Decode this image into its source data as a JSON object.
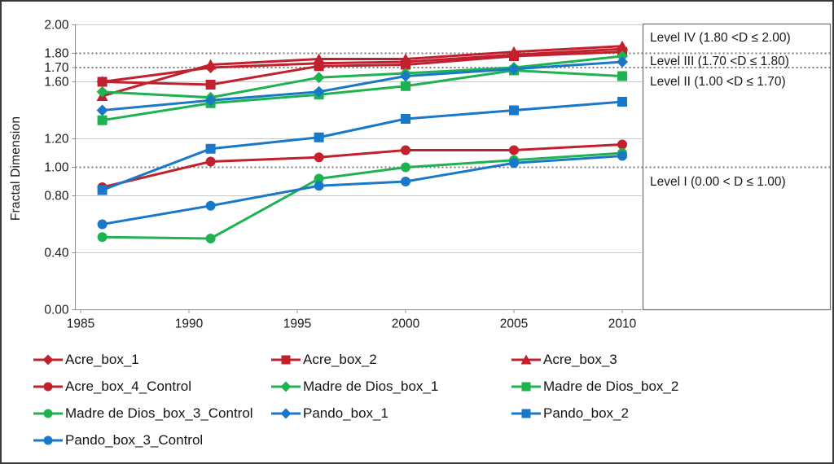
{
  "figure": {
    "colors": {
      "acre_red": "#C3202E",
      "madre_green": "#1EB250",
      "pando_blue": "#1978C8",
      "gridline": "#C8C8C8",
      "reference_dotted": "#7A7A7A",
      "axis": "#8C8C8C",
      "panel_border": "#6E6E6E",
      "text": "#1A1A1A"
    }
  },
  "chart_data": {
    "type": "line",
    "title": "",
    "xlabel": "",
    "ylabel": "Fractal Dimension",
    "x": [
      1986,
      1991,
      1996,
      2000,
      2005,
      2010
    ],
    "x_tick_labels": [
      "1985",
      "1990",
      "1995",
      "2000",
      "2005",
      "2010"
    ],
    "y_tick_labels": [
      "2.00",
      "1.80",
      "1.70",
      "1.60",
      "1.20",
      "1.00",
      "0.80",
      "0.40",
      "0.00"
    ],
    "ylim": [
      0.0,
      2.0
    ],
    "xlim": [
      1985,
      2011
    ],
    "grid_values": [
      2.0,
      1.6,
      1.2,
      0.8,
      0.4
    ],
    "reference_lines": [
      1.8,
      1.7,
      1.0
    ],
    "legend_position": "bottom",
    "series": [
      {
        "name": "Acre_box_1",
        "color": "#C3202E",
        "marker": "diamond",
        "values": [
          1.6,
          1.7,
          1.73,
          1.74,
          1.79,
          1.83
        ]
      },
      {
        "name": "Acre_box_2",
        "color": "#C3202E",
        "marker": "square",
        "values": [
          1.6,
          1.58,
          1.71,
          1.72,
          1.78,
          1.81
        ]
      },
      {
        "name": "Acre_box_3",
        "color": "#C3202E",
        "marker": "triangle",
        "values": [
          1.5,
          1.72,
          1.76,
          1.76,
          1.81,
          1.85
        ]
      },
      {
        "name": "Acre_box_4_Control",
        "color": "#C3202E",
        "marker": "circle",
        "values": [
          0.86,
          1.04,
          1.07,
          1.12,
          1.12,
          1.16
        ]
      },
      {
        "name": "Madre de Dios_box_1",
        "color": "#1EB250",
        "marker": "diamond",
        "values": [
          1.53,
          1.49,
          1.63,
          1.66,
          1.7,
          1.78
        ]
      },
      {
        "name": "Madre de Dios_box_2",
        "color": "#1EB250",
        "marker": "square",
        "values": [
          1.33,
          1.45,
          1.51,
          1.57,
          1.68,
          1.64
        ]
      },
      {
        "name": "Madre de Dios_box_3_Control",
        "color": "#1EB250",
        "marker": "circle",
        "values": [
          0.51,
          0.5,
          0.92,
          1.0,
          1.05,
          1.1
        ]
      },
      {
        "name": "Pando_box_1",
        "color": "#1978C8",
        "marker": "diamond",
        "values": [
          1.4,
          1.47,
          1.53,
          1.64,
          1.69,
          1.74
        ]
      },
      {
        "name": "Pando_box_2",
        "color": "#1978C8",
        "marker": "square",
        "values": [
          0.84,
          1.13,
          1.21,
          1.34,
          1.4,
          1.46
        ]
      },
      {
        "name": "Pando_box_3_Control",
        "color": "#1978C8",
        "marker": "circle",
        "values": [
          0.6,
          0.73,
          0.87,
          0.9,
          1.03,
          1.08
        ]
      }
    ],
    "levels": [
      {
        "label": "Level IV (1.80 <D ≤ 2.00)"
      },
      {
        "label": "Level III (1.70 <D ≤ 1.80)"
      },
      {
        "label": "Level II (1.00 <D ≤ 1.70)"
      },
      {
        "label": "Level I (0.00 < D ≤ 1.00)"
      }
    ]
  }
}
